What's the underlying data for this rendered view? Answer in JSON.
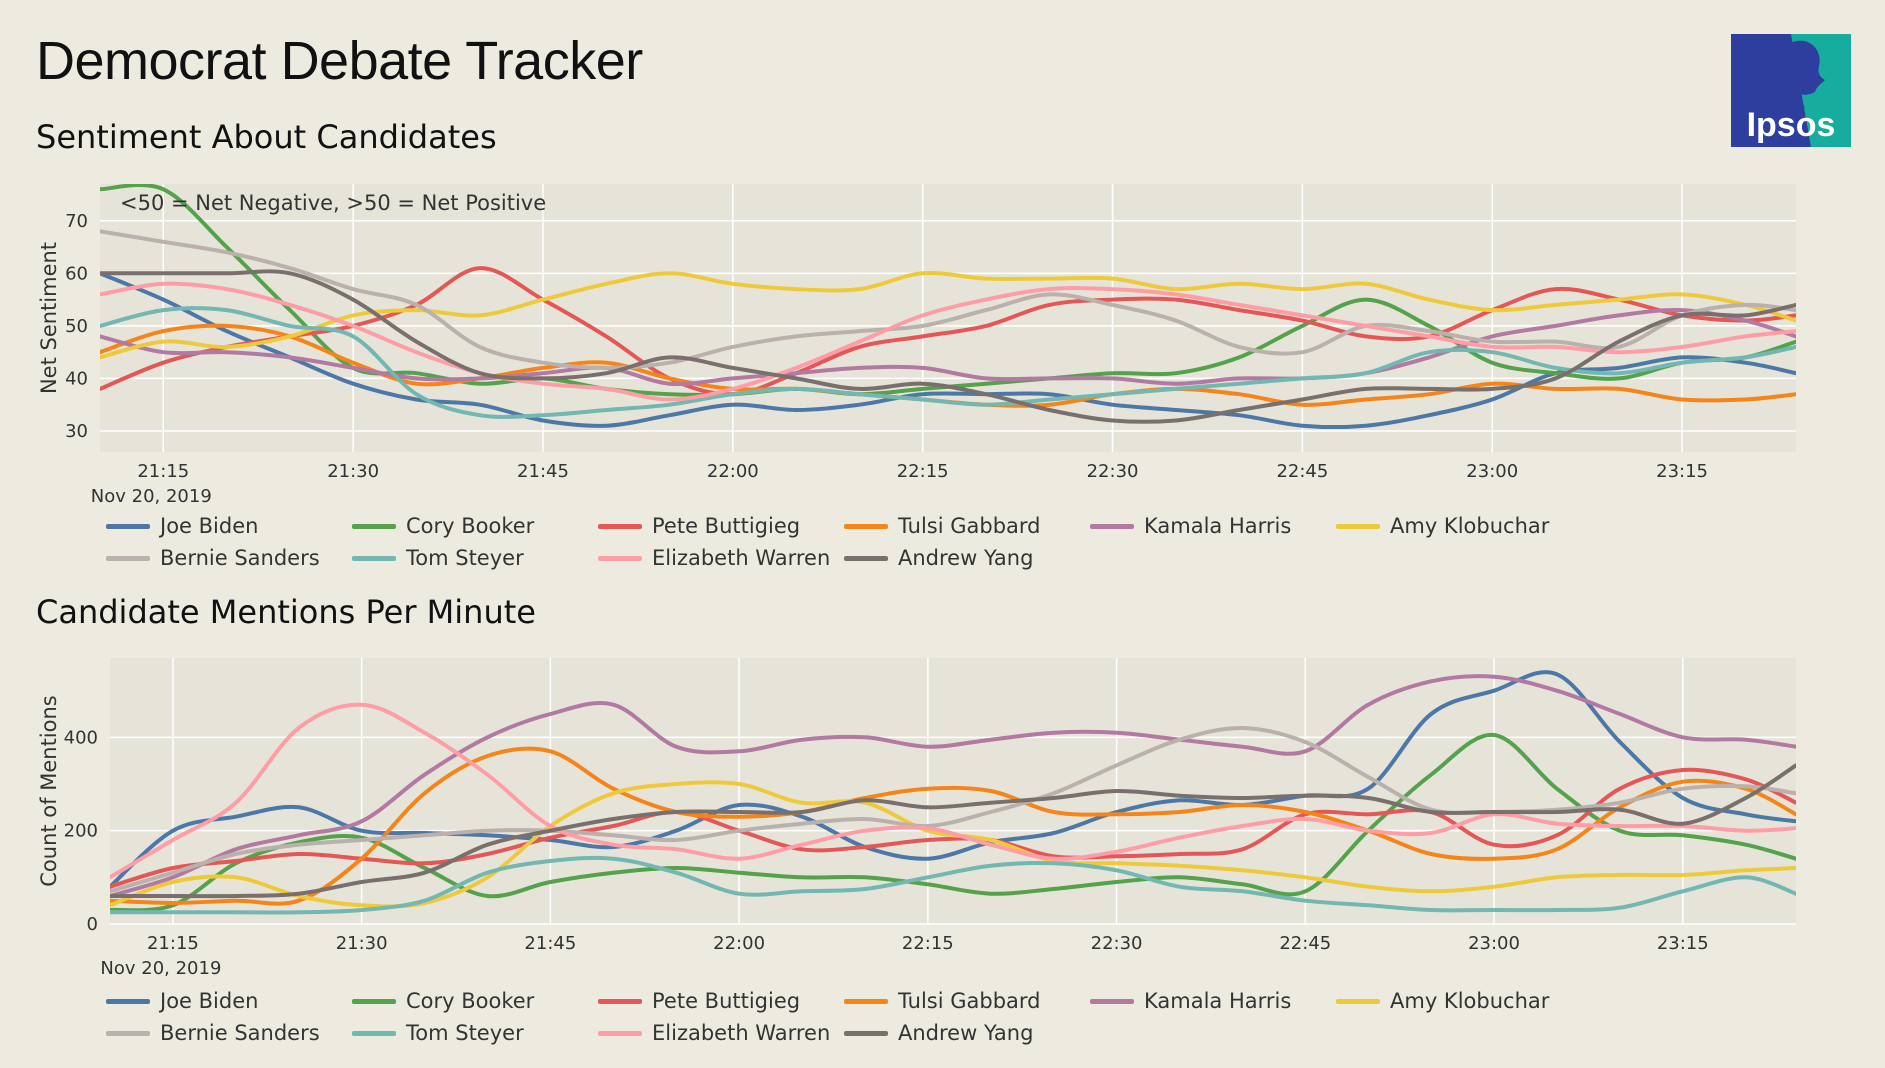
{
  "title": "Democrat Debate Tracker",
  "logo_text": "Ipsos",
  "candidates": [
    {
      "name": "Joe Biden",
      "color": "#4c78a8"
    },
    {
      "name": "Cory Booker",
      "color": "#54a24b"
    },
    {
      "name": "Pete Buttigieg",
      "color": "#e45756"
    },
    {
      "name": "Tulsi Gabbard",
      "color": "#f58518"
    },
    {
      "name": "Kamala Harris",
      "color": "#b279a2"
    },
    {
      "name": "Amy Klobuchar",
      "color": "#eeca3b"
    },
    {
      "name": "Bernie Sanders",
      "color": "#bab0ac"
    },
    {
      "name": "Tom Steyer",
      "color": "#72b7b2"
    },
    {
      "name": "Elizabeth Warren",
      "color": "#ff9da6"
    },
    {
      "name": "Andrew Yang",
      "color": "#79706e"
    }
  ],
  "chart_data": [
    {
      "type": "line",
      "title": "Sentiment About Candidates",
      "ylabel": "Net Sentiment",
      "annotation": "<50 = Net Negative, >50 = Net Positive",
      "x_start": "21:10",
      "x_end": "23:24",
      "x_date_label": "Nov 20, 2019",
      "xticks": [
        "21:15",
        "21:30",
        "21:45",
        "22:00",
        "22:15",
        "22:30",
        "22:45",
        "23:00",
        "23:15"
      ],
      "yticks": [
        30,
        40,
        50,
        60,
        70
      ],
      "ylim": [
        26,
        77
      ],
      "grid": true,
      "legend_position": "bottom",
      "x_minutes": [
        0,
        5,
        10,
        15,
        20,
        25,
        30,
        35,
        40,
        45,
        50,
        55,
        60,
        65,
        70,
        75,
        80,
        85,
        90,
        95,
        100,
        105,
        110,
        115,
        120,
        125,
        130,
        134
      ],
      "series": [
        {
          "name": "Joe Biden",
          "values": [
            60,
            55,
            49,
            44,
            39,
            36,
            35,
            32,
            31,
            33,
            35,
            34,
            35,
            37,
            37,
            37,
            35,
            34,
            33,
            31,
            31,
            33,
            36,
            41,
            42,
            44,
            43,
            41
          ]
        },
        {
          "name": "Cory Booker",
          "values": [
            76,
            76,
            65,
            53,
            42,
            41,
            39,
            40,
            38,
            37,
            37,
            38,
            37,
            38,
            39,
            40,
            41,
            41,
            44,
            50,
            55,
            50,
            43,
            41,
            40,
            43,
            44,
            47
          ]
        },
        {
          "name": "Pete Buttigieg",
          "values": [
            38,
            43,
            46,
            48,
            50,
            54,
            61,
            55,
            48,
            40,
            37,
            41,
            46,
            48,
            50,
            54,
            55,
            55,
            53,
            51,
            48,
            48,
            53,
            57,
            55,
            52,
            51,
            52
          ]
        },
        {
          "name": "Tulsi Gabbard",
          "values": [
            45,
            49,
            50,
            48,
            43,
            39,
            40,
            42,
            43,
            40,
            38,
            38,
            37,
            36,
            35,
            35,
            37,
            38,
            37,
            35,
            36,
            37,
            39,
            38,
            38,
            36,
            36,
            37
          ]
        },
        {
          "name": "Kamala Harris",
          "values": [
            48,
            45,
            45,
            44,
            42,
            40,
            40,
            41,
            42,
            39,
            40,
            41,
            42,
            42,
            40,
            40,
            40,
            39,
            40,
            40,
            41,
            44,
            48,
            50,
            52,
            53,
            51,
            48
          ]
        },
        {
          "name": "Amy Klobuchar",
          "values": [
            44,
            47,
            46,
            48,
            52,
            53,
            52,
            55,
            58,
            60,
            58,
            57,
            57,
            60,
            59,
            59,
            59,
            57,
            58,
            57,
            58,
            55,
            53,
            54,
            55,
            56,
            54,
            51
          ]
        },
        {
          "name": "Bernie Sanders",
          "values": [
            68,
            66,
            64,
            61,
            57,
            54,
            46,
            43,
            42,
            43,
            46,
            48,
            49,
            50,
            53,
            56,
            54,
            51,
            46,
            45,
            50,
            49,
            47,
            47,
            46,
            52,
            54,
            53
          ]
        },
        {
          "name": "Tom Steyer",
          "values": [
            50,
            53,
            53,
            50,
            48,
            37,
            33,
            33,
            34,
            35,
            37,
            38,
            37,
            36,
            35,
            36,
            37,
            38,
            39,
            40,
            41,
            45,
            45,
            42,
            41,
            43,
            44,
            46
          ]
        },
        {
          "name": "Elizabeth Warren",
          "values": [
            56,
            58,
            57,
            54,
            50,
            45,
            41,
            39,
            38,
            36,
            38,
            42,
            47,
            52,
            55,
            57,
            57,
            56,
            54,
            52,
            50,
            48,
            46,
            46,
            45,
            46,
            48,
            49
          ]
        },
        {
          "name": "Andrew Yang",
          "values": [
            60,
            60,
            60,
            60,
            55,
            47,
            41,
            40,
            41,
            44,
            42,
            40,
            38,
            39,
            37,
            34,
            32,
            32,
            34,
            36,
            38,
            38,
            38,
            40,
            47,
            52,
            52,
            54
          ]
        }
      ]
    },
    {
      "type": "line",
      "title": "Candidate Mentions Per Minute",
      "ylabel": "Count of Mentions",
      "x_start": "21:10",
      "x_end": "23:24",
      "x_date_label": "Nov 20, 2019",
      "xticks": [
        "21:15",
        "21:30",
        "21:45",
        "22:00",
        "22:15",
        "22:30",
        "22:45",
        "23:00",
        "23:15"
      ],
      "yticks": [
        0,
        200,
        400
      ],
      "ylim": [
        0,
        570
      ],
      "grid": true,
      "legend_position": "bottom",
      "x_minutes": [
        0,
        5,
        10,
        15,
        20,
        25,
        30,
        35,
        40,
        45,
        50,
        55,
        60,
        65,
        70,
        75,
        80,
        85,
        90,
        95,
        100,
        105,
        110,
        115,
        120,
        125,
        130,
        134
      ],
      "series": [
        {
          "name": "Joe Biden",
          "values": [
            80,
            200,
            230,
            250,
            200,
            195,
            190,
            180,
            165,
            200,
            255,
            230,
            165,
            140,
            175,
            195,
            240,
            265,
            255,
            275,
            290,
            450,
            500,
            535,
            390,
            270,
            235,
            220
          ]
        },
        {
          "name": "Cory Booker",
          "values": [
            30,
            40,
            130,
            175,
            185,
            120,
            60,
            90,
            110,
            120,
            110,
            100,
            100,
            85,
            65,
            75,
            90,
            100,
            85,
            70,
            200,
            320,
            405,
            290,
            200,
            190,
            170,
            140
          ]
        },
        {
          "name": "Pete Buttigieg",
          "values": [
            80,
            120,
            135,
            150,
            140,
            130,
            150,
            185,
            210,
            240,
            200,
            160,
            165,
            180,
            180,
            145,
            145,
            150,
            160,
            235,
            235,
            240,
            170,
            190,
            290,
            330,
            310,
            260
          ]
        },
        {
          "name": "Tulsi Gabbard",
          "values": [
            50,
            45,
            50,
            50,
            140,
            280,
            360,
            370,
            290,
            240,
            230,
            240,
            270,
            290,
            285,
            240,
            235,
            240,
            255,
            240,
            200,
            150,
            140,
            160,
            250,
            305,
            290,
            235
          ]
        },
        {
          "name": "Kamala Harris",
          "values": [
            60,
            100,
            160,
            190,
            220,
            320,
            400,
            450,
            470,
            380,
            370,
            395,
            400,
            380,
            395,
            410,
            410,
            395,
            380,
            370,
            470,
            520,
            530,
            500,
            450,
            400,
            395,
            380
          ]
        },
        {
          "name": "Amy Klobuchar",
          "values": [
            40,
            90,
            100,
            60,
            40,
            45,
            100,
            210,
            280,
            300,
            300,
            260,
            260,
            200,
            180,
            135,
            130,
            125,
            115,
            100,
            80,
            70,
            80,
            100,
            105,
            105,
            115,
            120
          ]
        },
        {
          "name": "Bernie Sanders",
          "values": [
            70,
            110,
            150,
            170,
            180,
            190,
            200,
            200,
            190,
            180,
            200,
            215,
            225,
            210,
            240,
            280,
            340,
            395,
            420,
            390,
            315,
            245,
            240,
            245,
            260,
            290,
            295,
            280
          ]
        },
        {
          "name": "Tom Steyer",
          "values": [
            25,
            25,
            25,
            25,
            30,
            50,
            110,
            135,
            140,
            110,
            65,
            70,
            75,
            100,
            125,
            130,
            115,
            80,
            70,
            50,
            40,
            30,
            30,
            30,
            35,
            70,
            100,
            65
          ]
        },
        {
          "name": "Elizabeth Warren",
          "values": [
            100,
            180,
            260,
            420,
            470,
            410,
            320,
            210,
            170,
            160,
            140,
            170,
            200,
            205,
            170,
            140,
            155,
            185,
            210,
            225,
            200,
            195,
            235,
            215,
            210,
            210,
            200,
            205
          ]
        },
        {
          "name": "Andrew Yang",
          "values": [
            60,
            60,
            60,
            65,
            90,
            110,
            170,
            200,
            225,
            240,
            240,
            240,
            265,
            250,
            260,
            270,
            285,
            275,
            270,
            275,
            270,
            240,
            240,
            240,
            245,
            215,
            270,
            340
          ]
        }
      ]
    }
  ]
}
